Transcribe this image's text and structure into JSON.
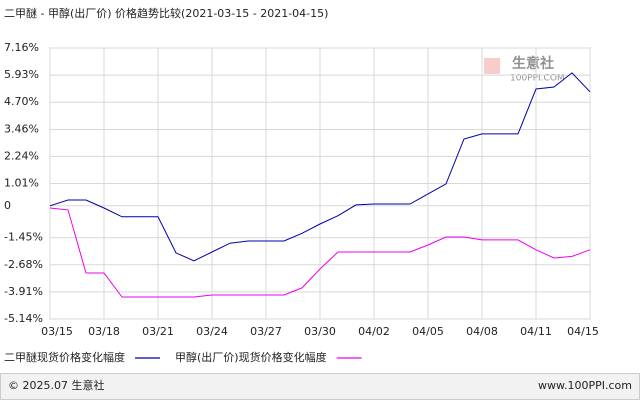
{
  "chart_data": {
    "type": "line",
    "title": "二甲醚 - 甲醇(出厂价) 价格趋势比较(2021-03-15 - 2021-04-15)",
    "watermark": {
      "name": "生意社",
      "site": "100PPI.COM"
    },
    "footer": {
      "left": "© 2025.07 生意社",
      "right": "www.100PPI.com"
    },
    "categories": [
      "03/15",
      null,
      null,
      "03/18",
      null,
      null,
      "03/21",
      null,
      null,
      "03/24",
      null,
      null,
      "03/27",
      null,
      null,
      "03/30",
      null,
      null,
      "04/02",
      null,
      null,
      "04/05",
      null,
      null,
      "04/08",
      null,
      null,
      "04/11",
      null,
      null,
      "04/15"
    ],
    "ylim": [
      -5.14,
      7.16
    ],
    "yticks": [
      {
        "value": 7.16,
        "label": "7.16%"
      },
      {
        "value": 5.93,
        "label": "5.93%"
      },
      {
        "value": 4.7,
        "label": "4.70%"
      },
      {
        "value": 3.46,
        "label": "3.46%"
      },
      {
        "value": 2.24,
        "label": "2.24%"
      },
      {
        "value": 1.01,
        "label": "1.01%"
      },
      0,
      {
        "value": -1.45,
        "label": "-1.45%"
      },
      {
        "value": -2.68,
        "label": "-2.68%"
      },
      {
        "value": -3.91,
        "label": "-3.91%"
      },
      {
        "value": -5.14,
        "label": "-5.14%"
      }
    ],
    "grid": true,
    "series": [
      {
        "name": "二甲醚现货价格变化幅度",
        "color": "#0000aa",
        "values": [
          0,
          0.26,
          0.26,
          -0.1,
          -0.5,
          -0.5,
          -0.5,
          -2.14,
          -2.5,
          -2.1,
          -1.7,
          -1.6,
          -1.6,
          -1.6,
          -1.25,
          -0.83,
          -0.45,
          0.04,
          0.08,
          0.08,
          0.08,
          0.54,
          0.99,
          3.03,
          3.26,
          3.26,
          3.26,
          5.3,
          5.39,
          6.03,
          5.17
        ]
      },
      {
        "name": "甲醇(出厂价)现货价格变化幅度",
        "color": "#ee00ee",
        "values": [
          -0.1,
          -0.19,
          -3.05,
          -3.05,
          -4.14,
          -4.14,
          -4.14,
          -4.14,
          -4.14,
          -4.05,
          -4.05,
          -4.05,
          -4.05,
          -4.05,
          -3.73,
          -2.87,
          -2.1,
          -2.1,
          -2.1,
          -2.1,
          -2.1,
          -1.78,
          -1.42,
          -1.42,
          -1.55,
          -1.55,
          -1.55,
          -2.0,
          -2.37,
          -2.3,
          -2.0
        ]
      }
    ]
  }
}
